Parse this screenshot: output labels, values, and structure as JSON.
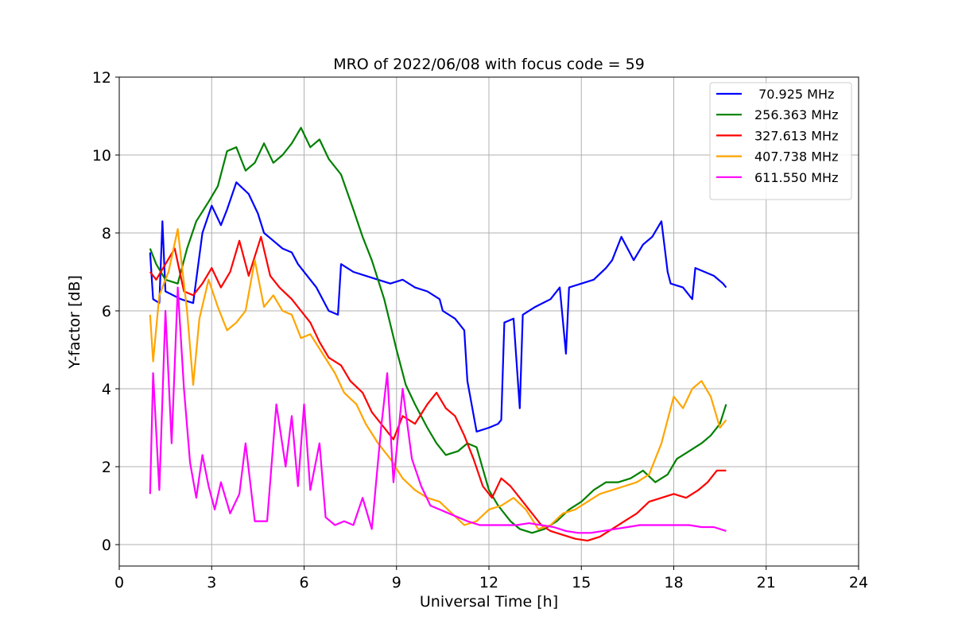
{
  "chart_data": {
    "type": "line",
    "title": "MRO of 2022/06/08 with focus code = 59",
    "xlabel": "Universal Time [h]",
    "ylabel": "Y-factor [dB]",
    "xlim": [
      0,
      24
    ],
    "ylim": [
      -0.55,
      12
    ],
    "x_ticks": [
      0,
      3,
      6,
      9,
      12,
      15,
      18,
      21,
      24
    ],
    "y_ticks": [
      0,
      2,
      4,
      6,
      8,
      10,
      12
    ],
    "x_tick_labels": [
      "0",
      "3",
      "6",
      "9",
      "12",
      "15",
      "18",
      "21",
      "24"
    ],
    "y_tick_labels": [
      "0",
      "2",
      "4",
      "6",
      "8",
      "10",
      "12"
    ],
    "grid": true,
    "legend_position": "top-right",
    "series": [
      {
        "name": " 70.925 MHz",
        "color": "#0000ff",
        "points": [
          [
            1.0,
            7.5
          ],
          [
            1.1,
            6.3
          ],
          [
            1.3,
            6.2
          ],
          [
            1.4,
            8.3
          ],
          [
            1.5,
            6.5
          ],
          [
            2.0,
            6.3
          ],
          [
            2.4,
            6.2
          ],
          [
            2.7,
            8.0
          ],
          [
            3.0,
            8.7
          ],
          [
            3.3,
            8.2
          ],
          [
            3.5,
            8.6
          ],
          [
            3.8,
            9.3
          ],
          [
            4.2,
            9.0
          ],
          [
            4.5,
            8.5
          ],
          [
            4.7,
            8.0
          ],
          [
            5.0,
            7.8
          ],
          [
            5.3,
            7.6
          ],
          [
            5.6,
            7.5
          ],
          [
            5.8,
            7.2
          ],
          [
            6.1,
            6.9
          ],
          [
            6.4,
            6.6
          ],
          [
            6.8,
            6.0
          ],
          [
            7.1,
            5.9
          ],
          [
            7.2,
            7.2
          ],
          [
            7.6,
            7.0
          ],
          [
            8.0,
            6.9
          ],
          [
            8.4,
            6.8
          ],
          [
            8.8,
            6.7
          ],
          [
            9.2,
            6.8
          ],
          [
            9.6,
            6.6
          ],
          [
            10.0,
            6.5
          ],
          [
            10.4,
            6.3
          ],
          [
            10.5,
            6.0
          ],
          [
            10.9,
            5.8
          ],
          [
            11.2,
            5.5
          ],
          [
            11.3,
            4.2
          ],
          [
            11.6,
            2.9
          ],
          [
            12.0,
            3.0
          ],
          [
            12.3,
            3.1
          ],
          [
            12.4,
            3.2
          ],
          [
            12.5,
            5.7
          ],
          [
            12.8,
            5.8
          ],
          [
            13.0,
            3.5
          ],
          [
            13.1,
            5.9
          ],
          [
            13.5,
            6.1
          ],
          [
            14.0,
            6.3
          ],
          [
            14.3,
            6.6
          ],
          [
            14.5,
            4.9
          ],
          [
            14.6,
            6.6
          ],
          [
            15.0,
            6.7
          ],
          [
            15.4,
            6.8
          ],
          [
            15.8,
            7.1
          ],
          [
            16.0,
            7.3
          ],
          [
            16.3,
            7.9
          ],
          [
            16.5,
            7.6
          ],
          [
            16.7,
            7.3
          ],
          [
            17.0,
            7.7
          ],
          [
            17.3,
            7.9
          ],
          [
            17.6,
            8.3
          ],
          [
            17.8,
            7.0
          ],
          [
            17.9,
            6.7
          ],
          [
            18.3,
            6.6
          ],
          [
            18.6,
            6.3
          ],
          [
            18.7,
            7.1
          ],
          [
            19.0,
            7.0
          ],
          [
            19.3,
            6.9
          ],
          [
            19.6,
            6.7
          ],
          [
            19.7,
            6.6
          ]
        ]
      },
      {
        "name": "256.363 MHz",
        "color": "#008000",
        "points": [
          [
            1.0,
            7.6
          ],
          [
            1.2,
            7.2
          ],
          [
            1.5,
            6.8
          ],
          [
            1.9,
            6.7
          ],
          [
            2.2,
            7.6
          ],
          [
            2.5,
            8.3
          ],
          [
            2.9,
            8.8
          ],
          [
            3.2,
            9.2
          ],
          [
            3.5,
            10.1
          ],
          [
            3.8,
            10.2
          ],
          [
            4.1,
            9.6
          ],
          [
            4.4,
            9.8
          ],
          [
            4.7,
            10.3
          ],
          [
            5.0,
            9.8
          ],
          [
            5.3,
            10.0
          ],
          [
            5.6,
            10.3
          ],
          [
            5.9,
            10.7
          ],
          [
            6.2,
            10.2
          ],
          [
            6.5,
            10.4
          ],
          [
            6.8,
            9.9
          ],
          [
            7.2,
            9.5
          ],
          [
            7.6,
            8.6
          ],
          [
            7.9,
            7.9
          ],
          [
            8.2,
            7.3
          ],
          [
            8.6,
            6.3
          ],
          [
            9.0,
            5.0
          ],
          [
            9.3,
            4.1
          ],
          [
            9.6,
            3.6
          ],
          [
            10.0,
            3.0
          ],
          [
            10.3,
            2.6
          ],
          [
            10.6,
            2.3
          ],
          [
            11.0,
            2.4
          ],
          [
            11.3,
            2.6
          ],
          [
            11.6,
            2.5
          ],
          [
            12.0,
            1.4
          ],
          [
            12.3,
            1.0
          ],
          [
            12.7,
            0.6
          ],
          [
            13.0,
            0.4
          ],
          [
            13.4,
            0.3
          ],
          [
            13.8,
            0.4
          ],
          [
            14.2,
            0.6
          ],
          [
            14.6,
            0.9
          ],
          [
            15.0,
            1.1
          ],
          [
            15.4,
            1.4
          ],
          [
            15.8,
            1.6
          ],
          [
            16.2,
            1.6
          ],
          [
            16.6,
            1.7
          ],
          [
            17.0,
            1.9
          ],
          [
            17.4,
            1.6
          ],
          [
            17.8,
            1.8
          ],
          [
            18.1,
            2.2
          ],
          [
            18.5,
            2.4
          ],
          [
            18.9,
            2.6
          ],
          [
            19.2,
            2.8
          ],
          [
            19.5,
            3.1
          ],
          [
            19.7,
            3.6
          ]
        ]
      },
      {
        "name": "327.613 MHz",
        "color": "#ff0000",
        "points": [
          [
            1.0,
            7.0
          ],
          [
            1.2,
            6.8
          ],
          [
            1.5,
            7.2
          ],
          [
            1.8,
            7.6
          ],
          [
            2.1,
            6.5
          ],
          [
            2.4,
            6.4
          ],
          [
            2.7,
            6.7
          ],
          [
            3.0,
            7.1
          ],
          [
            3.3,
            6.6
          ],
          [
            3.6,
            7.0
          ],
          [
            3.9,
            7.8
          ],
          [
            4.2,
            6.9
          ],
          [
            4.6,
            7.9
          ],
          [
            4.9,
            6.9
          ],
          [
            5.2,
            6.6
          ],
          [
            5.6,
            6.3
          ],
          [
            5.9,
            6.0
          ],
          [
            6.2,
            5.7
          ],
          [
            6.5,
            5.2
          ],
          [
            6.8,
            4.8
          ],
          [
            7.2,
            4.6
          ],
          [
            7.5,
            4.2
          ],
          [
            7.9,
            3.9
          ],
          [
            8.2,
            3.4
          ],
          [
            8.6,
            3.0
          ],
          [
            8.9,
            2.7
          ],
          [
            9.2,
            3.3
          ],
          [
            9.6,
            3.1
          ],
          [
            10.0,
            3.6
          ],
          [
            10.3,
            3.9
          ],
          [
            10.6,
            3.5
          ],
          [
            10.9,
            3.3
          ],
          [
            11.2,
            2.8
          ],
          [
            11.5,
            2.2
          ],
          [
            11.8,
            1.5
          ],
          [
            12.1,
            1.2
          ],
          [
            12.4,
            1.7
          ],
          [
            12.7,
            1.5
          ],
          [
            13.0,
            1.2
          ],
          [
            13.3,
            0.9
          ],
          [
            13.7,
            0.5
          ],
          [
            14.0,
            0.35
          ],
          [
            14.4,
            0.25
          ],
          [
            14.8,
            0.15
          ],
          [
            15.2,
            0.1
          ],
          [
            15.6,
            0.2
          ],
          [
            16.0,
            0.4
          ],
          [
            16.4,
            0.6
          ],
          [
            16.8,
            0.8
          ],
          [
            17.2,
            1.1
          ],
          [
            17.6,
            1.2
          ],
          [
            18.0,
            1.3
          ],
          [
            18.4,
            1.2
          ],
          [
            18.8,
            1.4
          ],
          [
            19.1,
            1.6
          ],
          [
            19.4,
            1.9
          ],
          [
            19.7,
            1.9
          ]
        ]
      },
      {
        "name": "407.738 MHz",
        "color": "#ffa500",
        "points": [
          [
            1.0,
            5.9
          ],
          [
            1.1,
            4.7
          ],
          [
            1.3,
            6.4
          ],
          [
            1.6,
            7.0
          ],
          [
            1.9,
            8.1
          ],
          [
            2.2,
            6.0
          ],
          [
            2.4,
            4.1
          ],
          [
            2.6,
            5.8
          ],
          [
            2.9,
            6.8
          ],
          [
            3.2,
            6.1
          ],
          [
            3.5,
            5.5
          ],
          [
            3.8,
            5.7
          ],
          [
            4.1,
            6.0
          ],
          [
            4.4,
            7.3
          ],
          [
            4.7,
            6.1
          ],
          [
            5.0,
            6.4
          ],
          [
            5.3,
            6.0
          ],
          [
            5.6,
            5.9
          ],
          [
            5.9,
            5.3
          ],
          [
            6.2,
            5.4
          ],
          [
            6.6,
            4.9
          ],
          [
            7.0,
            4.4
          ],
          [
            7.3,
            3.9
          ],
          [
            7.7,
            3.6
          ],
          [
            8.0,
            3.1
          ],
          [
            8.4,
            2.6
          ],
          [
            8.8,
            2.2
          ],
          [
            9.2,
            1.7
          ],
          [
            9.6,
            1.4
          ],
          [
            10.0,
            1.2
          ],
          [
            10.4,
            1.1
          ],
          [
            10.8,
            0.8
          ],
          [
            11.2,
            0.5
          ],
          [
            11.6,
            0.6
          ],
          [
            12.0,
            0.9
          ],
          [
            12.4,
            1.0
          ],
          [
            12.8,
            1.2
          ],
          [
            13.2,
            0.9
          ],
          [
            13.6,
            0.4
          ],
          [
            14.0,
            0.5
          ],
          [
            14.4,
            0.8
          ],
          [
            14.8,
            0.9
          ],
          [
            15.2,
            1.1
          ],
          [
            15.6,
            1.3
          ],
          [
            16.0,
            1.4
          ],
          [
            16.4,
            1.5
          ],
          [
            16.8,
            1.6
          ],
          [
            17.2,
            1.8
          ],
          [
            17.6,
            2.6
          ],
          [
            18.0,
            3.8
          ],
          [
            18.3,
            3.5
          ],
          [
            18.6,
            4.0
          ],
          [
            18.9,
            4.2
          ],
          [
            19.2,
            3.8
          ],
          [
            19.5,
            3.0
          ],
          [
            19.7,
            3.2
          ]
        ]
      },
      {
        "name": "611.550 MHz",
        "color": "#ff00ff",
        "points": [
          [
            1.0,
            1.3
          ],
          [
            1.1,
            4.4
          ],
          [
            1.3,
            1.4
          ],
          [
            1.5,
            6.0
          ],
          [
            1.7,
            2.6
          ],
          [
            1.9,
            6.6
          ],
          [
            2.1,
            4.0
          ],
          [
            2.3,
            2.1
          ],
          [
            2.5,
            1.2
          ],
          [
            2.7,
            2.3
          ],
          [
            2.9,
            1.5
          ],
          [
            3.1,
            0.9
          ],
          [
            3.3,
            1.6
          ],
          [
            3.6,
            0.8
          ],
          [
            3.9,
            1.3
          ],
          [
            4.1,
            2.6
          ],
          [
            4.4,
            0.6
          ],
          [
            4.8,
            0.6
          ],
          [
            5.1,
            3.6
          ],
          [
            5.4,
            2.0
          ],
          [
            5.6,
            3.3
          ],
          [
            5.8,
            1.5
          ],
          [
            6.0,
            3.6
          ],
          [
            6.2,
            1.4
          ],
          [
            6.5,
            2.6
          ],
          [
            6.7,
            0.7
          ],
          [
            7.0,
            0.5
          ],
          [
            7.3,
            0.6
          ],
          [
            7.6,
            0.5
          ],
          [
            7.9,
            1.2
          ],
          [
            8.2,
            0.4
          ],
          [
            8.5,
            3.0
          ],
          [
            8.7,
            4.4
          ],
          [
            8.9,
            1.6
          ],
          [
            9.2,
            4.0
          ],
          [
            9.5,
            2.2
          ],
          [
            9.8,
            1.5
          ],
          [
            10.1,
            1.0
          ],
          [
            10.4,
            0.9
          ],
          [
            10.7,
            0.8
          ],
          [
            11.0,
            0.7
          ],
          [
            11.3,
            0.6
          ],
          [
            11.7,
            0.5
          ],
          [
            12.1,
            0.5
          ],
          [
            12.5,
            0.5
          ],
          [
            12.9,
            0.5
          ],
          [
            13.3,
            0.55
          ],
          [
            13.7,
            0.5
          ],
          [
            14.1,
            0.45
          ],
          [
            14.5,
            0.35
          ],
          [
            14.9,
            0.3
          ],
          [
            15.3,
            0.3
          ],
          [
            15.7,
            0.35
          ],
          [
            16.1,
            0.4
          ],
          [
            16.5,
            0.45
          ],
          [
            16.9,
            0.5
          ],
          [
            17.3,
            0.5
          ],
          [
            17.7,
            0.5
          ],
          [
            18.1,
            0.5
          ],
          [
            18.5,
            0.5
          ],
          [
            18.9,
            0.45
          ],
          [
            19.3,
            0.45
          ],
          [
            19.7,
            0.35
          ]
        ]
      }
    ]
  }
}
